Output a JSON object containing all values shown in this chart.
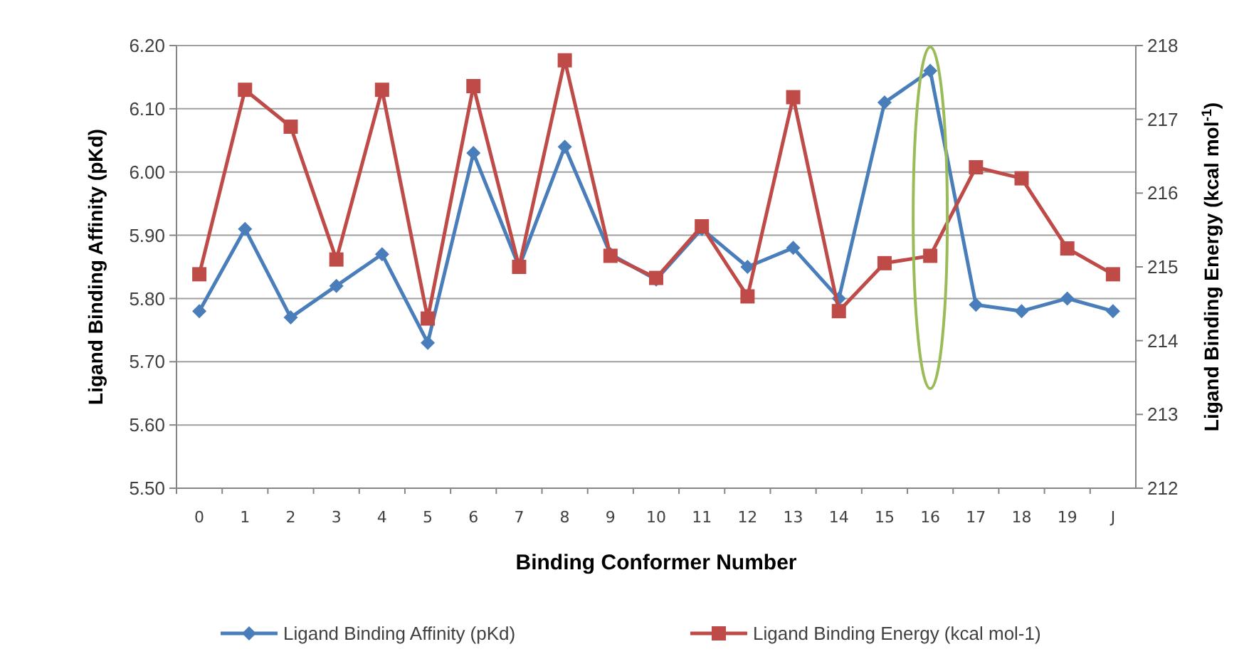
{
  "chart_data": {
    "type": "line",
    "xlabel": "Binding Conformer Number",
    "ylabel": "Ligand Binding Affinity (pKd)",
    "y2label": "Ligand Binding Energy (kcal mol$^{-1}$)",
    "categories": [
      "0",
      "1",
      "2",
      "3",
      "4",
      "5",
      "6",
      "7",
      "8",
      "9",
      "10",
      "11",
      "12",
      "13",
      "14",
      "15",
      "16",
      "17",
      "18",
      "19",
      "J"
    ],
    "series": [
      {
        "name": "Ligand Binding Affinity (pKd)",
        "color": "#4a7ebb",
        "marker": "diamond",
        "values": [
          5.78,
          5.91,
          5.77,
          5.82,
          5.87,
          5.73,
          6.03,
          5.85,
          6.04,
          5.87,
          5.83,
          5.91,
          5.85,
          5.88,
          5.8,
          6.11,
          6.16,
          5.79,
          5.78,
          5.8,
          5.78
        ]
      },
      {
        "name": "Ligand Binding Energy (kcal mol-1)",
        "color": "#be4b48",
        "marker": "square",
        "axis": "y2",
        "values": [
          214.9,
          217.4,
          216.9,
          215.1,
          217.4,
          214.3,
          217.45,
          215.0,
          217.8,
          215.15,
          214.85,
          215.55,
          214.6,
          217.3,
          214.4,
          215.05,
          215.15,
          216.35,
          216.2,
          215.25,
          214.9
        ]
      }
    ],
    "ylim": [
      5.5,
      6.2
    ],
    "yticks": [
      {
        "value": 5.5,
        "label": "5.50"
      },
      {
        "value": 5.6,
        "label": "5.60"
      },
      {
        "value": 5.7,
        "label": "5.70"
      },
      {
        "value": 5.8,
        "label": "5.80"
      },
      {
        "value": 5.9,
        "label": "5.90"
      },
      {
        "value": 6.0,
        "label": "6.00"
      },
      {
        "value": 6.1,
        "label": "6.10"
      },
      {
        "value": 6.2,
        "label": "6.20"
      }
    ],
    "y2lim": [
      212,
      218
    ],
    "y2ticks": [
      212,
      213,
      214,
      215,
      216,
      217,
      218
    ],
    "grid": "y",
    "legend": "bottom"
  }
}
